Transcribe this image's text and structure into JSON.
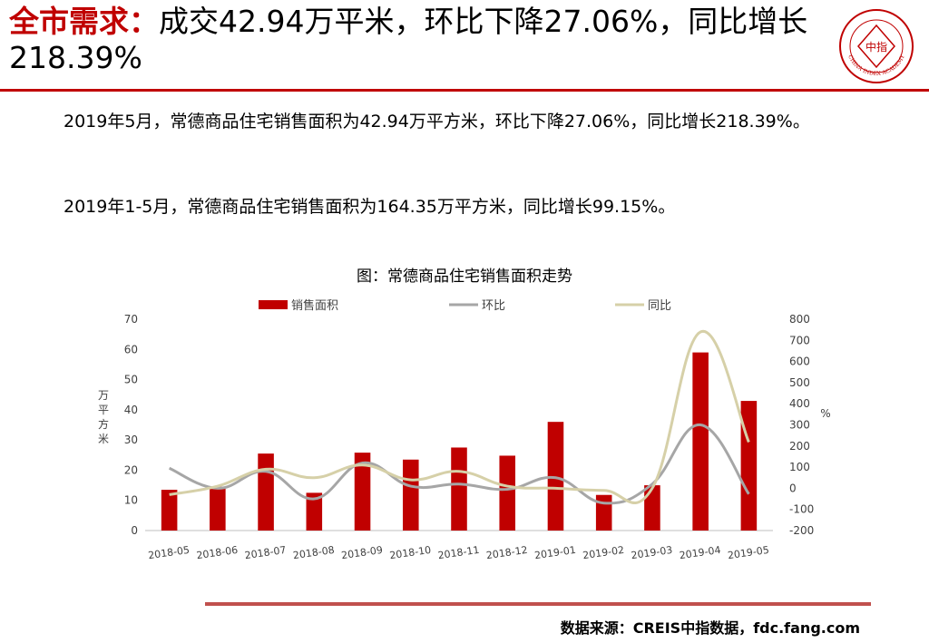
{
  "header": {
    "title_lead": "全市需求：",
    "title_rest": "成交42.94万平米，环比下降27.06%，同比增长218.39%",
    "logo_center_text": "中指",
    "logo_ring_text": "CHINA INDEX ACADEMY"
  },
  "body": {
    "paragraph1": "2019年5月，常德商品住宅销售面积为42.94万平方米，环比下降27.06%，同比增长218.39%。",
    "paragraph2": "2019年1-5月，常德商品住宅销售面积为164.35万平方米，同比增长99.15%。"
  },
  "chart_title": "图：常德商品住宅销售面积走势",
  "chart_data": {
    "type": "bar",
    "categories": [
      "2018-05",
      "2018-06",
      "2018-07",
      "2018-08",
      "2018-09",
      "2018-10",
      "2018-11",
      "2018-12",
      "2019-01",
      "2019-02",
      "2019-03",
      "2019-04",
      "2019-05"
    ],
    "series": [
      {
        "name": "销售面积",
        "type": "bar",
        "axis": "left",
        "color": "#c00000",
        "values": [
          13.5,
          14.5,
          25.5,
          12.5,
          25.8,
          23.5,
          27.5,
          24.8,
          36.0,
          11.8,
          15.0,
          59.0,
          42.94
        ]
      },
      {
        "name": "环比",
        "type": "line",
        "axis": "right",
        "color": "#a6a6a6",
        "values": [
          95,
          0,
          80,
          -50,
          120,
          10,
          20,
          -5,
          50,
          -70,
          20,
          300,
          -27.06
        ]
      },
      {
        "name": "同比",
        "type": "line",
        "axis": "right",
        "color": "#d6d0a8",
        "values": [
          -30,
          10,
          90,
          50,
          110,
          40,
          80,
          10,
          0,
          -10,
          0,
          740,
          218.39
        ]
      }
    ],
    "ylabel_left": "万平方米",
    "ylabel_right": "%",
    "ylim_left": [
      0,
      70
    ],
    "yticks_left": [
      0,
      10,
      20,
      30,
      40,
      50,
      60,
      70
    ],
    "ylim_right": [
      -200,
      800
    ],
    "yticks_right": [
      -200,
      -100,
      0,
      100,
      200,
      300,
      400,
      500,
      600,
      700,
      800
    ],
    "legend_position": "top",
    "grid": false
  },
  "footer": {
    "source": "数据来源：CREIS中指数据，fdc.fang.com"
  }
}
